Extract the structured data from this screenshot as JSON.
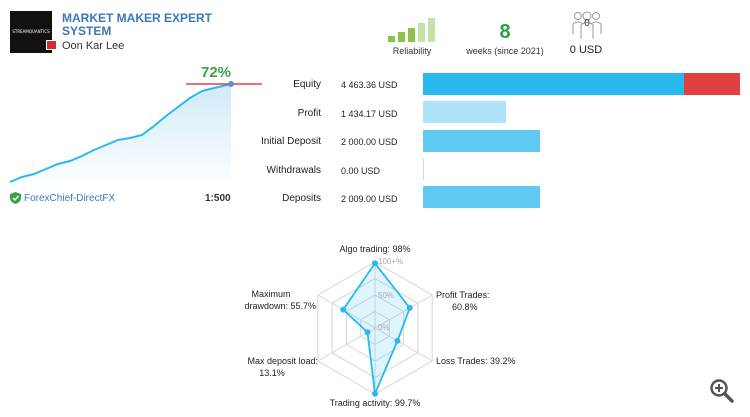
{
  "header": {
    "logo_text": "STREAMQUANTICS",
    "title": "MARKET MAKER EXPERT SYSTEM",
    "author": "Oon Kar Lee"
  },
  "stats": {
    "reliability_label": "Reliability",
    "reliability_level": 0.6,
    "weeks_value": "8",
    "weeks_label": "weeks (since 2021)",
    "subscribers_count": "0",
    "subscribers_money": "0 USD"
  },
  "growth": {
    "percent": "72%",
    "broker": "ForexChief-DirectFX",
    "leverage": "1:500"
  },
  "account": [
    {
      "label": "Equity",
      "value": "4 463.36 USD"
    },
    {
      "label": "Profit",
      "value": "1 434.17 USD"
    },
    {
      "label": "Initial Deposit",
      "value": "2 000.00 USD"
    },
    {
      "label": "Withdrawals",
      "value": "0.00 USD"
    },
    {
      "label": "Deposits",
      "value": "2 009.00 USD"
    }
  ],
  "radar": {
    "ticks": [
      "100+%",
      "50%",
      "0%"
    ],
    "labels": {
      "algo": "Algo trading: 98%",
      "profit_trades_1": "Profit Trades:",
      "profit_trades_2": "60.8%",
      "loss_trades": "Loss Trades: 39.2%",
      "trading_activity": "Trading activity: 99.7%",
      "max_deposit_load_1": "Max deposit load:",
      "max_deposit_load_2": "13.1%",
      "max_drawdown_1": "Maximum",
      "max_drawdown_2": "drawdown: 55.7%"
    },
    "values": [
      98,
      60.8,
      39.2,
      99.7,
      13.1,
      55.7
    ]
  },
  "colors": {
    "accent": "#29b9ef",
    "accent_light": "#aee3f8",
    "loss": "#e04040",
    "growth_green": "#3aa04a"
  },
  "icons": {
    "zoom": "zoom-in-icon",
    "shield": "shield-check-icon",
    "subscribers": "people-icon"
  }
}
